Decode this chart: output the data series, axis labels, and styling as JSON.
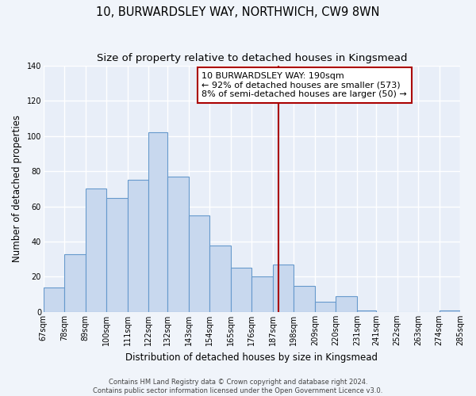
{
  "title": "10, BURWARDSLEY WAY, NORTHWICH, CW9 8WN",
  "subtitle": "Size of property relative to detached houses in Kingsmead",
  "xlabel": "Distribution of detached houses by size in Kingsmead",
  "ylabel": "Number of detached properties",
  "bar_edges": [
    67,
    78,
    89,
    100,
    111,
    122,
    132,
    143,
    154,
    165,
    176,
    187,
    198,
    209,
    220,
    231,
    241,
    252,
    263,
    274,
    285
  ],
  "bar_heights": [
    14,
    33,
    70,
    65,
    75,
    102,
    77,
    55,
    38,
    25,
    20,
    27,
    15,
    6,
    9,
    1,
    0,
    0,
    0,
    1
  ],
  "bar_color": "#c8d8ee",
  "bar_edgecolor": "#6699cc",
  "vline_x": 190,
  "vline_color": "#aa0000",
  "annotation_title": "10 BURWARDSLEY WAY: 190sqm",
  "annotation_line1": "← 92% of detached houses are smaller (573)",
  "annotation_line2": "8% of semi-detached houses are larger (50) →",
  "ylim": [
    0,
    140
  ],
  "yticks": [
    0,
    20,
    40,
    60,
    80,
    100,
    120,
    140
  ],
  "tick_labels": [
    "67sqm",
    "78sqm",
    "89sqm",
    "100sqm",
    "111sqm",
    "122sqm",
    "132sqm",
    "143sqm",
    "154sqm",
    "165sqm",
    "176sqm",
    "187sqm",
    "198sqm",
    "209sqm",
    "220sqm",
    "231sqm",
    "241sqm",
    "252sqm",
    "263sqm",
    "274sqm",
    "285sqm"
  ],
  "footer1": "Contains HM Land Registry data © Crown copyright and database right 2024.",
  "footer2": "Contains public sector information licensed under the Open Government Licence v3.0.",
  "background_color": "#f0f4fa",
  "plot_bg_color": "#e8eef8",
  "grid_color": "#ffffff",
  "title_fontsize": 10.5,
  "subtitle_fontsize": 9.5,
  "axis_label_fontsize": 8.5,
  "tick_fontsize": 7,
  "footer_fontsize": 6,
  "annot_fontsize": 8
}
